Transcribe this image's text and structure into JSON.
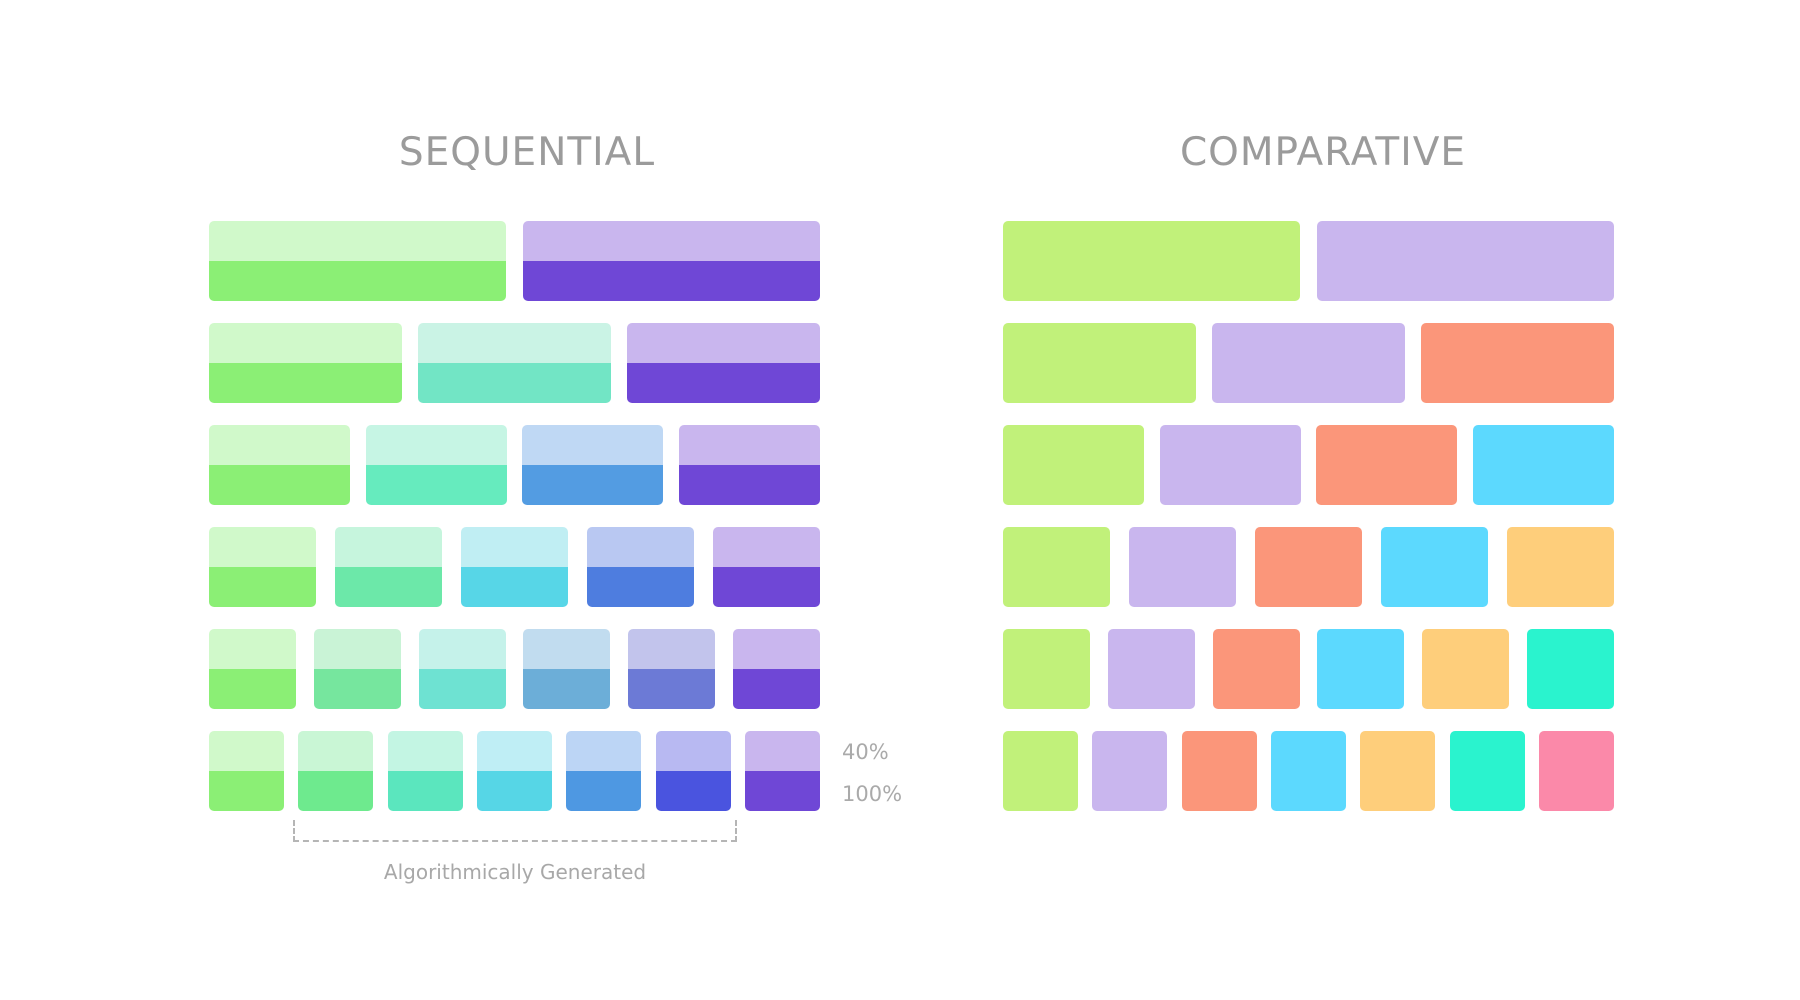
{
  "sequential": {
    "title": "SEQUENTIAL",
    "rows": [
      [
        [
          "#d0f9ca",
          "#8bef75"
        ],
        [
          "#c9b6ee",
          "#6f47d6"
        ]
      ],
      [
        [
          "#d0f9ca",
          "#8bef75"
        ],
        [
          "#caf3e5",
          "#72e5c5"
        ],
        [
          "#c9b6ee",
          "#6f47d6"
        ]
      ],
      [
        [
          "#d0f9ca",
          "#8bef75"
        ],
        [
          "#c6f5e4",
          "#66ebbe"
        ],
        [
          "#bfd8f4",
          "#539ce2"
        ],
        [
          "#c9b6ee",
          "#6f47d6"
        ]
      ],
      [
        [
          "#d0f9ca",
          "#8bef75"
        ],
        [
          "#c6f5dd",
          "#6ce8a9"
        ],
        [
          "#c0eef3",
          "#57d6e7"
        ],
        [
          "#b9c8f2",
          "#4e7ddf"
        ],
        [
          "#c9b6ee",
          "#6f47d6"
        ]
      ],
      [
        [
          "#d0f9ca",
          "#8bef75"
        ],
        [
          "#c9f3d6",
          "#76e69e"
        ],
        [
          "#c5f2ea",
          "#6ee2d2"
        ],
        [
          "#c1dcef",
          "#6caed8"
        ],
        [
          "#c2c4ec",
          "#6c7ad6"
        ],
        [
          "#c9b6ee",
          "#6f47d6"
        ]
      ],
      [
        [
          "#d0f9ca",
          "#8bef75"
        ],
        [
          "#c9f6d5",
          "#6eea8e"
        ],
        [
          "#c3f5e3",
          "#5be6be"
        ],
        [
          "#bfeef5",
          "#56d6e6"
        ],
        [
          "#bcd5f5",
          "#4e98e2"
        ],
        [
          "#b8b9f2",
          "#4a54df"
        ],
        [
          "#c9b6ee",
          "#6f47d6"
        ]
      ]
    ],
    "legend_top": "40%",
    "legend_bottom": "100%",
    "bracket_label": "Algorithmically Generated"
  },
  "comparative": {
    "title": "COMPARATIVE",
    "rows": [
      [
        "#c1f17a",
        "#c9b6ee"
      ],
      [
        "#c1f17a",
        "#c9b6ee",
        "#fb967a"
      ],
      [
        "#c1f17a",
        "#c9b6ee",
        "#fb967a",
        "#5cd9fe"
      ],
      [
        "#c1f17a",
        "#c9b6ee",
        "#fb967a",
        "#5cd9fe",
        "#fece7b"
      ],
      [
        "#c1f17a",
        "#c9b6ee",
        "#fb967a",
        "#5cd9fe",
        "#fece7b",
        "#2af3ce"
      ],
      [
        "#c1f17a",
        "#c9b6ee",
        "#fb967a",
        "#5cd9fe",
        "#fece7b",
        "#2af3ce",
        "#fb89a9"
      ]
    ]
  }
}
